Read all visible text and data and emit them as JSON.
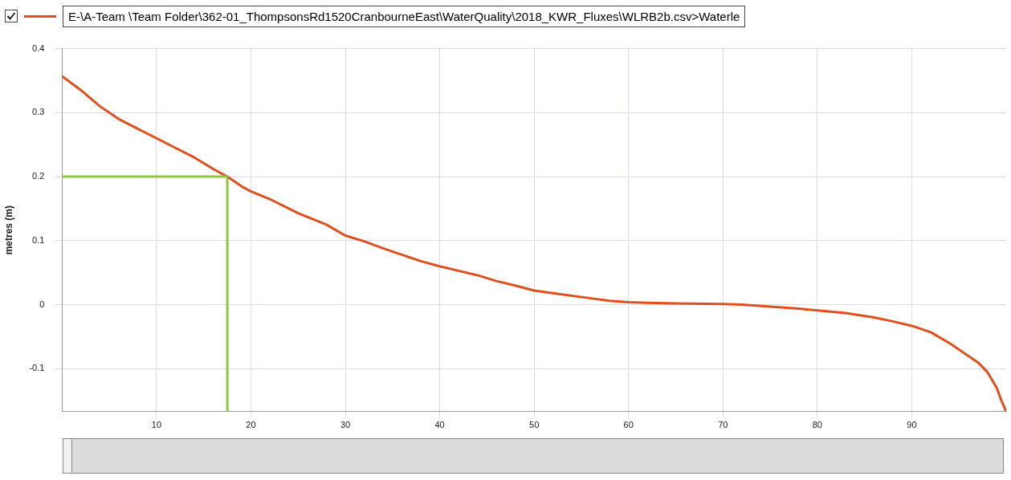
{
  "chart_data": {
    "type": "line",
    "ylabel": "metres (m)",
    "x": [
      0,
      2,
      4,
      6,
      8,
      10,
      12,
      14,
      16,
      17.5,
      19,
      20,
      22,
      25,
      28,
      30,
      32,
      34,
      36,
      38,
      40,
      42,
      44,
      46,
      48,
      50,
      52,
      54,
      56,
      58,
      60,
      62,
      65,
      70,
      72,
      75,
      78,
      80,
      83,
      86,
      88,
      90,
      92,
      94,
      96,
      97,
      98,
      99,
      99.5,
      100
    ],
    "series": [
      {
        "name": "E-\\A-Team \\Team Folder\\362-01_ThompsonsRd1520CranbourneEast\\WaterQuality\\2018_KWR_Fluxes\\WLRB2b.csv>Waterle",
        "color": "#e0501e",
        "values": [
          0.357,
          0.335,
          0.31,
          0.29,
          0.275,
          0.26,
          0.245,
          0.23,
          0.212,
          0.2,
          0.185,
          0.177,
          0.165,
          0.143,
          0.125,
          0.108,
          0.099,
          0.088,
          0.078,
          0.068,
          0.06,
          0.053,
          0.046,
          0.037,
          0.03,
          0.022,
          0.018,
          0.014,
          0.01,
          0.006,
          0.004,
          0.003,
          0.002,
          0.001,
          0,
          -0.003,
          -0.006,
          -0.009,
          -0.013,
          -0.02,
          -0.026,
          -0.033,
          -0.043,
          -0.06,
          -0.08,
          -0.09,
          -0.105,
          -0.13,
          -0.15,
          -0.167
        ]
      }
    ],
    "xlim": [
      0,
      100
    ],
    "xticks": [
      10,
      20,
      30,
      40,
      50,
      60,
      70,
      80,
      90
    ],
    "ylim": [
      -0.167,
      0.4
    ],
    "yticks": [
      -0.1,
      0,
      0.1,
      0.2,
      0.3,
      0.4
    ],
    "ref_lines": [
      {
        "axis": "x",
        "value": 17.5,
        "color": "#8dc63f"
      },
      {
        "axis": "y",
        "value": 0.2,
        "color": "#8dc63f"
      }
    ],
    "grid": true,
    "legend": "top left",
    "marker": "none",
    "line_style": "solid"
  }
}
